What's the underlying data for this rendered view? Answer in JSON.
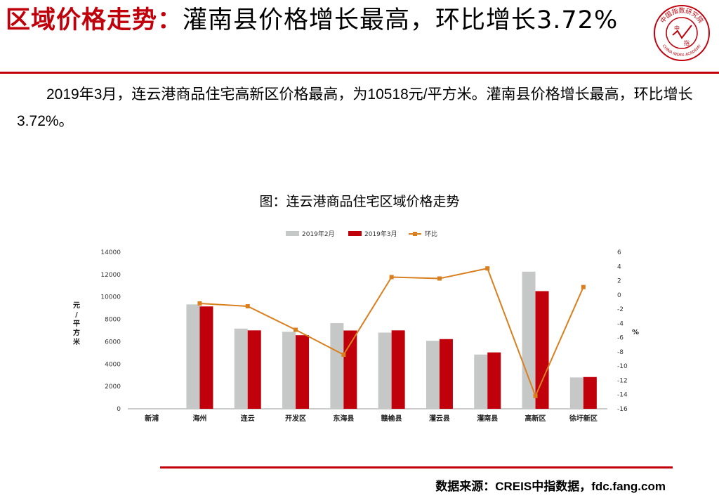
{
  "header": {
    "title_highlight": "区域价格走势：",
    "title_rest": "灌南县价格增长最高，环比增长3.72%"
  },
  "logo": {
    "ring_text": "中国指数研究院",
    "english_text": "CHINA INDEX ACADEMY",
    "center_text_1": "中",
    "center_text_2": "指"
  },
  "paragraph": "2019年3月，连云港商品住宅高新区价格最高，为10518元/平方米。灌南县价格增长最高，环比增长3.72%。",
  "chart_title": "图：连云港商品住宅区域价格走势",
  "source": "数据来源：CREIS中指数据，fdc.fang.com",
  "colors": {
    "accent": "#c0000b",
    "feb": "#c5c8c6",
    "mar": "#c0000b",
    "line": "#d97f1f"
  },
  "chart_data": {
    "type": "bar",
    "categories": [
      "新浦",
      "海州",
      "连云",
      "开发区",
      "东海县",
      "赣榆县",
      "灌云县",
      "灌南县",
      "高新区",
      "徐圩新区"
    ],
    "series": [
      {
        "name": "2019年2月",
        "type": "bar",
        "axis": "left",
        "values": [
          null,
          9330,
          7170,
          6880,
          7660,
          6810,
          6080,
          4850,
          12260,
          2800
        ]
      },
      {
        "name": "2019年3月",
        "type": "bar",
        "axis": "left",
        "values": [
          null,
          9150,
          7010,
          6580,
          7000,
          7010,
          6230,
          5040,
          10518,
          2840
        ]
      },
      {
        "name": "环比",
        "type": "line",
        "axis": "right",
        "values": [
          null,
          -1.2,
          -1.6,
          -4.9,
          -8.4,
          2.5,
          2.3,
          3.72,
          -14.2,
          1.1
        ]
      }
    ],
    "ylabel_left": "元/平方米",
    "ylabel_right": "%",
    "ylim_left": [
      0,
      14000
    ],
    "yticks_left": [
      0,
      2000,
      4000,
      6000,
      8000,
      10000,
      12000,
      14000
    ],
    "ylim_right": [
      -16,
      6
    ],
    "yticks_right": [
      6,
      4,
      2,
      0,
      -2,
      -4,
      -6,
      -8,
      -10,
      -12,
      -14,
      -16
    ],
    "legend_position": "top-center",
    "grid": false
  }
}
